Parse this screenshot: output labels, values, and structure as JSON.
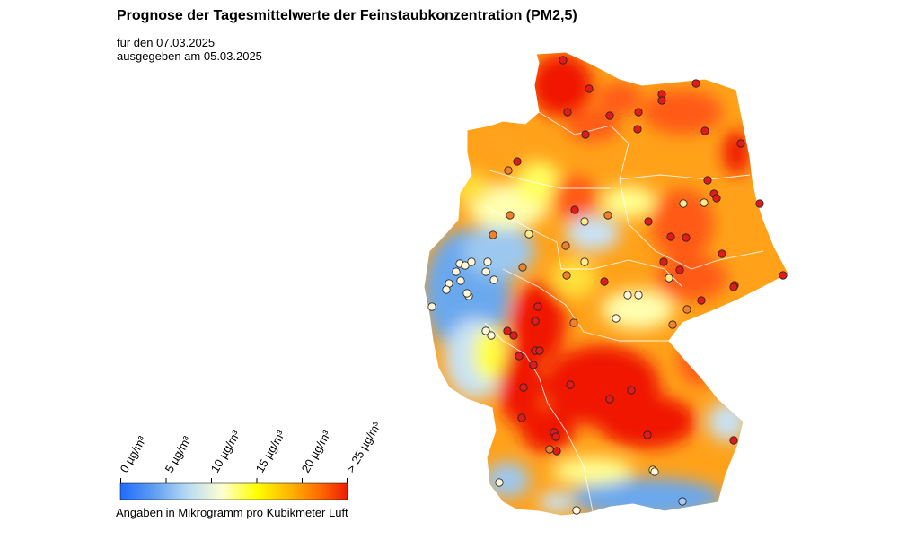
{
  "header": {
    "title": "Prognose der Tagesmittelwerte der Feinstaubkonzentration (PM2,5)",
    "forecast_date": "für den 07.03.2025",
    "issued_date": "ausgegeben am 05.03.2025"
  },
  "legend": {
    "ticks": [
      "0 µg/m³",
      "5 µg/m³",
      "10 µg/m³",
      "15 µg/m³",
      "20 µg/m³",
      "> 25 µg/m³"
    ],
    "colors": [
      "#1f6cff",
      "#5b9bf2",
      "#b9dcf2",
      "#ffffd0",
      "#ffff00",
      "#ffb400",
      "#ff6a00",
      "#ee1c00"
    ],
    "unit_note": "Angaben in Mikrogramm pro Kubikmeter Luft"
  },
  "map": {
    "region": "Germany",
    "field_palette": {
      "low": "#6aa8ee",
      "mid_low": "#c8e2f4",
      "mid": "#ffffb0",
      "yellow": "#ffe03a",
      "orange": "#ffa21a",
      "red_orange": "#ff5a14",
      "red": "#f01400"
    }
  }
}
